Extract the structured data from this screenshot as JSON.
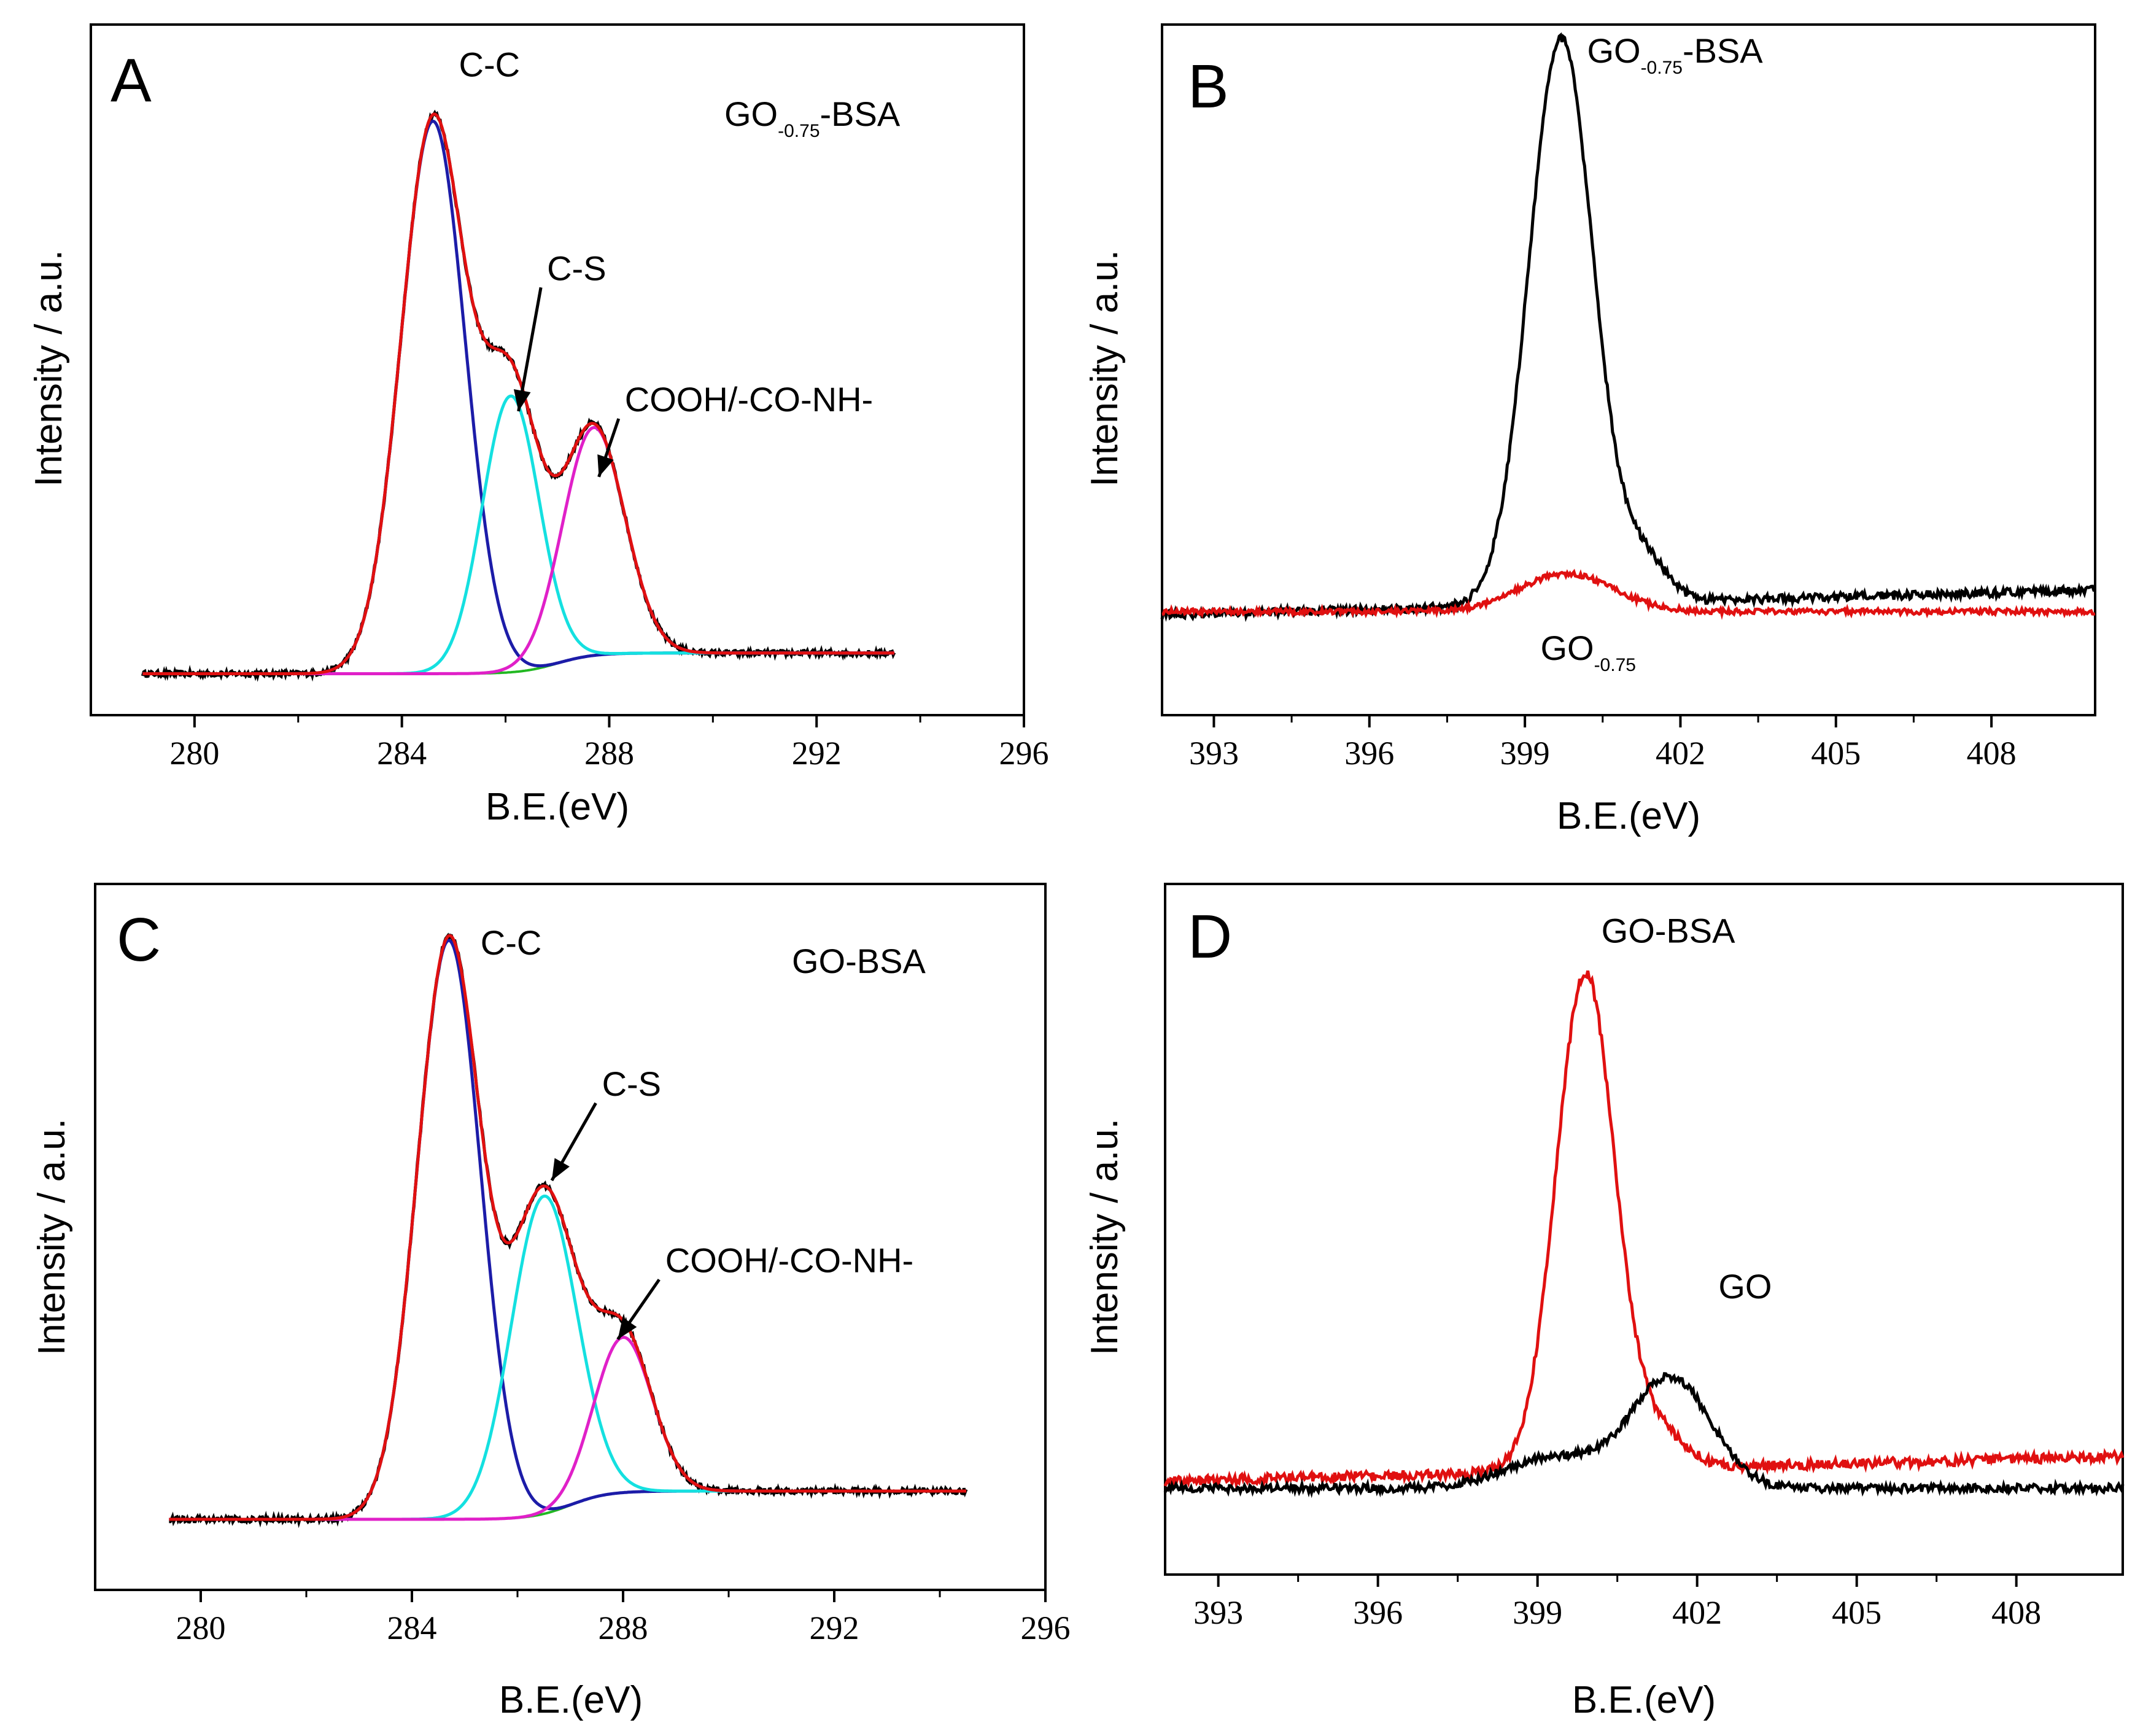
{
  "chart_data": [
    {
      "id": "A",
      "type": "line",
      "panel_label": "A",
      "title": "",
      "sample_label": {
        "main": "GO",
        "sub": "-0.75",
        "suffix": "-BSA"
      },
      "xlabel": "B.E.(eV)",
      "ylabel": "Intensity / a.u.",
      "xlim": [
        278,
        296
      ],
      "ylim": [
        0,
        1.0
      ],
      "xticks": [
        280,
        284,
        288,
        292,
        296
      ],
      "baseline": {
        "x0": 279,
        "y0": 0.06,
        "x1": 293.5,
        "y1": 0.09,
        "step_center": 287.0,
        "step_width": 1.4
      },
      "components": [
        {
          "name": "C-C",
          "color": "#1c1ca8",
          "center": 284.6,
          "sigma": 0.62,
          "amplitude": 0.8
        },
        {
          "name": "C-S",
          "color": "#14e0e0",
          "center": 286.1,
          "sigma": 0.55,
          "amplitude": 0.4
        },
        {
          "name": "COOH/-CO-NH-",
          "color": "#e020c8",
          "center": 287.7,
          "sigma": 0.6,
          "amplitude": 0.33
        }
      ],
      "envelope_color": "#e01010",
      "raw_color": "#000000",
      "annotations": [
        {
          "text": "C-C",
          "x": 285.1,
          "y": 0.925
        },
        {
          "text": "C-S",
          "x": 286.8,
          "y": 0.63,
          "arrow_to": [
            286.25,
            0.44
          ]
        },
        {
          "text": "COOH/-CO-NH-",
          "x": 288.3,
          "y": 0.44,
          "arrow_to": [
            287.8,
            0.345
          ]
        }
      ]
    },
    {
      "id": "B",
      "type": "line",
      "panel_label": "B",
      "xlabel": "B.E.(eV)",
      "ylabel": "Intensity / a.u.",
      "xlim": [
        392,
        410
      ],
      "ylim": [
        0,
        1.0
      ],
      "xticks": [
        393,
        396,
        399,
        402,
        405,
        408
      ],
      "series": [
        {
          "name": "GO-0.75-BSA",
          "color": "#000000",
          "baseline": 0.145,
          "peaks": [
            {
              "center": 399.7,
              "sigma": 0.62,
              "amp": 0.82
            },
            {
              "center": 401.3,
              "sigma": 0.45,
              "amp": 0.06
            }
          ],
          "noise": 0.006,
          "slope": 0.002
        },
        {
          "name": "GO-0.75",
          "color": "#e01010",
          "baseline": 0.15,
          "peaks": [
            {
              "center": 399.8,
              "sigma": 0.9,
              "amp": 0.055
            }
          ],
          "noise": 0.004,
          "slope": 0
        }
      ],
      "annotations": [
        {
          "main": "GO",
          "sub": "-0.75",
          "suffix": "-BSA",
          "x": 400.2,
          "y": 0.945
        },
        {
          "main": "GO",
          "sub": "-0.75",
          "suffix": "",
          "x": 399.3,
          "y": 0.08
        }
      ]
    },
    {
      "id": "C",
      "type": "line",
      "panel_label": "C",
      "sample_label": {
        "main": "GO-BSA",
        "sub": "",
        "suffix": ""
      },
      "xlabel": "B.E.(eV)",
      "ylabel": "Intensity / a.u.",
      "xlim": [
        278,
        296
      ],
      "ylim": [
        0,
        1.0
      ],
      "xticks": [
        280,
        284,
        288,
        292,
        296
      ],
      "baseline": {
        "x0": 279.4,
        "y0": 0.1,
        "x1": 294.5,
        "y1": 0.14,
        "step_center": 287.0,
        "step_width": 1.4
      },
      "components": [
        {
          "name": "C-C",
          "color": "#1c1ca8",
          "center": 284.7,
          "sigma": 0.6,
          "amplitude": 0.82
        },
        {
          "name": "C-S",
          "color": "#14e0e0",
          "center": 286.5,
          "sigma": 0.62,
          "amplitude": 0.45
        },
        {
          "name": "COOH/-CO-NH-",
          "color": "#e020c8",
          "center": 288.0,
          "sigma": 0.55,
          "amplitude": 0.22
        }
      ],
      "envelope_color": "#e01010",
      "raw_color": "#000000",
      "annotations": [
        {
          "text": "C-C",
          "x": 285.3,
          "y": 0.9
        },
        {
          "text": "C-S",
          "x": 287.6,
          "y": 0.7,
          "arrow_to": [
            286.65,
            0.58
          ]
        },
        {
          "text": "COOH/-CO-NH-",
          "x": 288.8,
          "y": 0.45,
          "arrow_to": [
            287.9,
            0.355
          ]
        }
      ]
    },
    {
      "id": "D",
      "type": "line",
      "panel_label": "D",
      "xlabel": "B.E.(eV)",
      "ylabel": "Intensity / a.u.",
      "xlim": [
        392,
        410
      ],
      "ylim": [
        0,
        1.0
      ],
      "xticks": [
        393,
        396,
        399,
        402,
        405,
        408
      ],
      "series": [
        {
          "name": "GO-BSA",
          "color": "#e01010",
          "baseline": 0.135,
          "peaks": [
            {
              "center": 399.9,
              "sigma": 0.55,
              "amp": 0.72
            },
            {
              "center": 401.3,
              "sigma": 0.5,
              "amp": 0.05
            }
          ],
          "noise": 0.007,
          "slope": 0.002
        },
        {
          "name": "GO",
          "color": "#000000",
          "baseline": 0.125,
          "peaks": [
            {
              "center": 401.5,
              "sigma": 0.75,
              "amp": 0.16
            },
            {
              "center": 399.3,
              "sigma": 0.9,
              "amp": 0.045
            }
          ],
          "noise": 0.006,
          "slope": 0
        }
      ],
      "annotations": [
        {
          "main": "GO-BSA",
          "sub": "",
          "suffix": "",
          "x": 400.2,
          "y": 0.915
        },
        {
          "main": "GO",
          "sub": "",
          "suffix": "",
          "x": 402.4,
          "y": 0.4
        }
      ]
    }
  ]
}
